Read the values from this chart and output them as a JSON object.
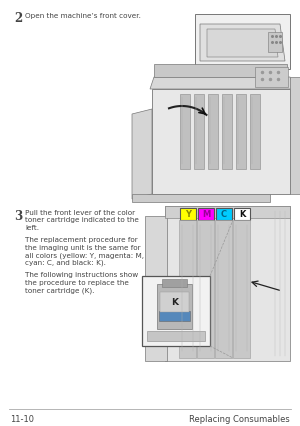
{
  "page_bg": "#ffffff",
  "step2_number": "2",
  "step2_text": "Open the machine’s front cover.",
  "step3_number": "3",
  "step3_lines": [
    "Pull the front lever of the color",
    "toner cartridge indicated to the",
    "left."
  ],
  "para1_lines": [
    "The replacement procedure for",
    "the imaging unit is the same for",
    "all colors (yellow: Y, magenta: M,",
    "cyan: C, and black: K)."
  ],
  "para2_lines": [
    "The following instructions show",
    "the procedure to replace the",
    "toner cartridge (K)."
  ],
  "ymck_labels": [
    "Y",
    "M",
    "C",
    "K"
  ],
  "ymck_box_colors": [
    "#ffff00",
    "#ff00ff",
    "#00ccff",
    "#ffffff"
  ],
  "ymck_text_colors": [
    "#888800",
    "#990099",
    "#006688",
    "#111111"
  ],
  "footer_left": "11-10",
  "footer_right": "Replacing Consumables",
  "footer_line_color": "#aaaaaa",
  "text_color": "#444444",
  "line_color": "#777777",
  "bg_gray": "#e8e8e8",
  "bg_gray2": "#d0d0d0",
  "bg_gray3": "#bbbbbb"
}
